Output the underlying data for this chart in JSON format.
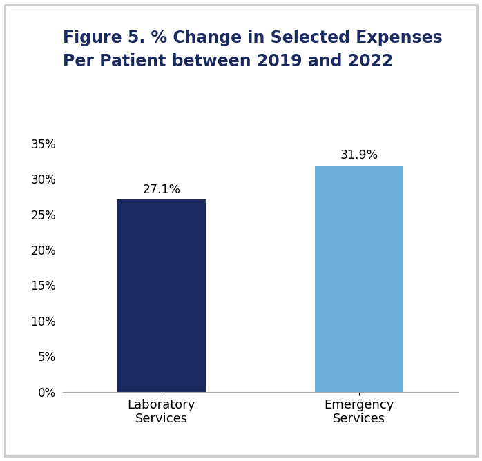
{
  "title_line1": "Figure 5. % Change in Selected Expenses",
  "title_line2": "Per Patient between 2019 and 2022",
  "categories": [
    "Laboratory\nServices",
    "Emergency\nServices"
  ],
  "values": [
    27.1,
    31.9
  ],
  "bar_colors": [
    "#1a2a5e",
    "#6daed9"
  ],
  "bar_labels": [
    "27.1%",
    "31.9%"
  ],
  "ylim": [
    0,
    37
  ],
  "yticks": [
    0,
    5,
    10,
    15,
    20,
    25,
    30,
    35
  ],
  "ytick_labels": [
    "0%",
    "5%",
    "10%",
    "15%",
    "20%",
    "25%",
    "30%",
    "35%"
  ],
  "title_color": "#1a2a5e",
  "title_fontsize": 17,
  "label_fontsize": 13,
  "tick_fontsize": 12,
  "annotation_fontsize": 12.5,
  "background_color": "#ffffff",
  "border_color": "#cccccc",
  "bar_width": 0.45
}
